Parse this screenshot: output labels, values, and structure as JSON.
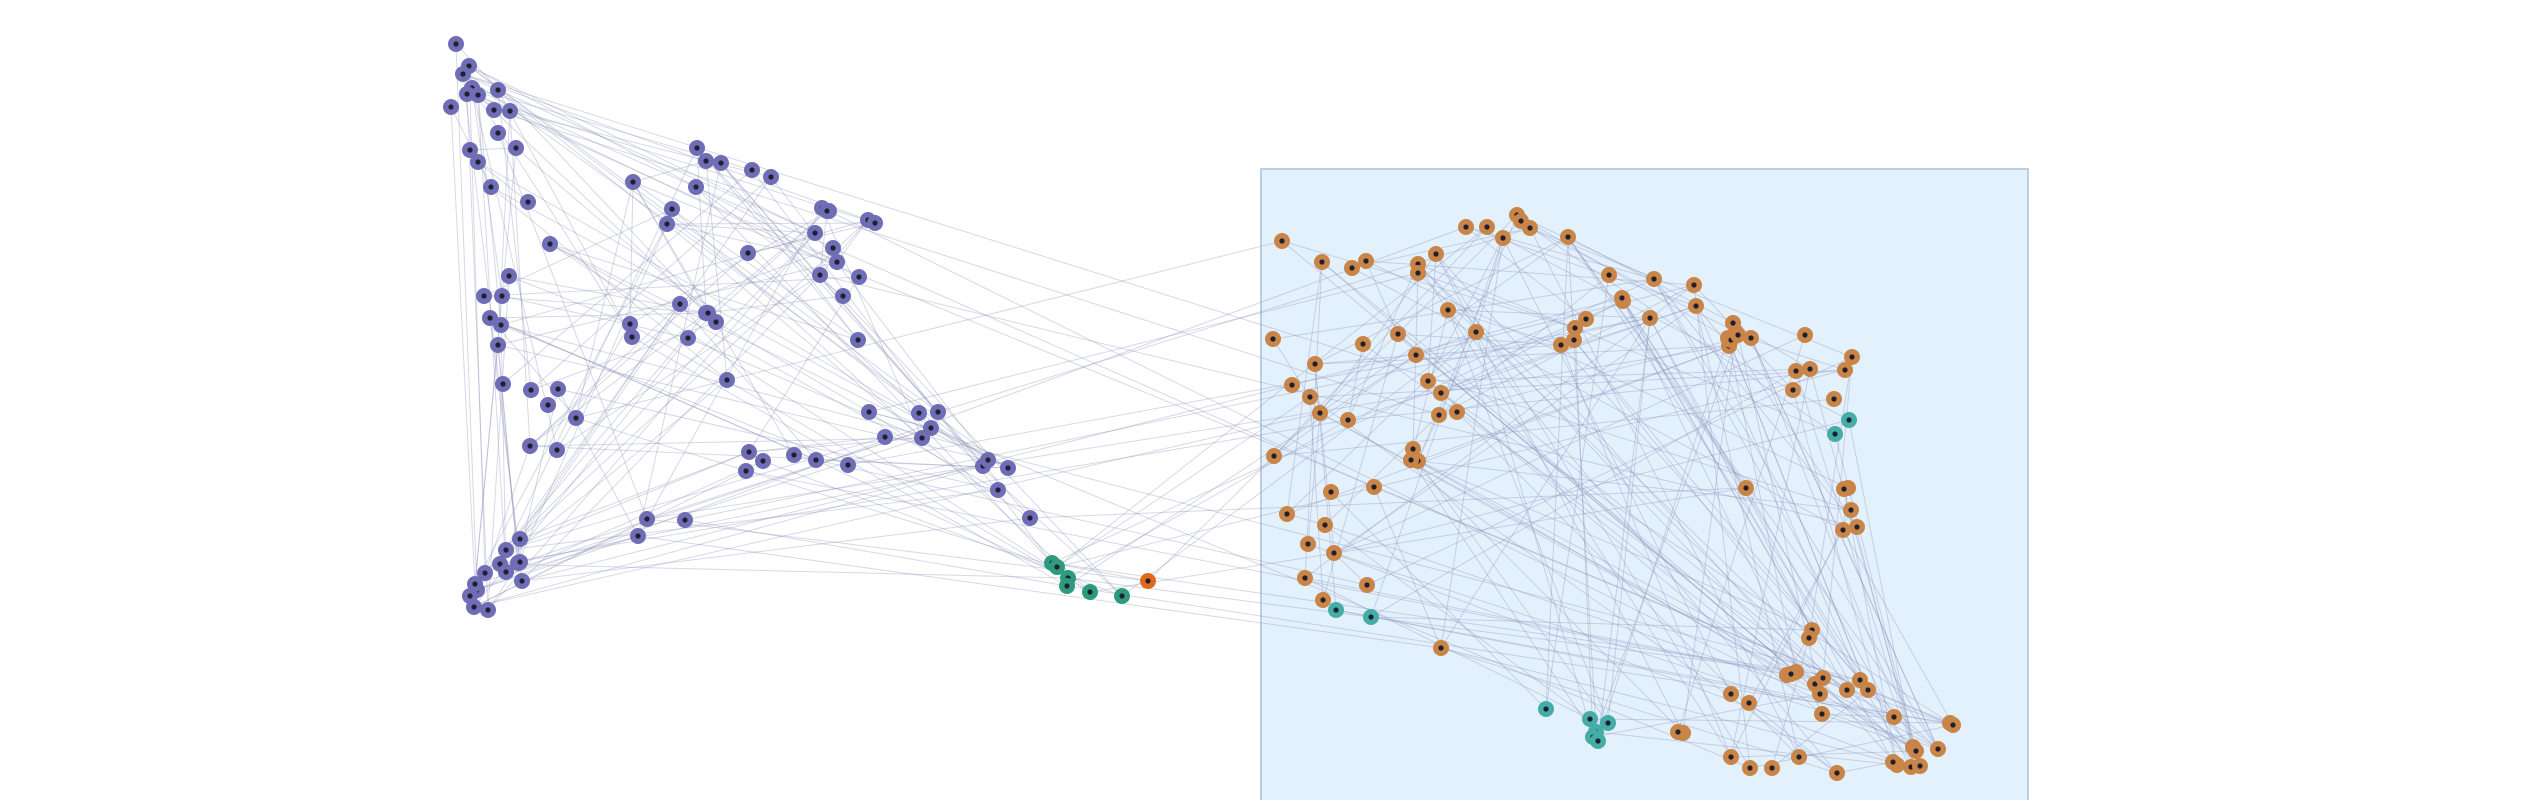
{
  "colors": {
    "background": "#ffffff",
    "highlight_fill": "#e3f1fc",
    "highlight_stroke": "#a9bfdc",
    "edge": "#8a8fb8",
    "purple": "#6f6db5",
    "orange": "#c98448",
    "green": "#2e9a7c",
    "teal": "#44ada7",
    "red": "#e2681e"
  },
  "groups": [
    {
      "id": "purple",
      "color": "#6f6db5"
    },
    {
      "id": "orange",
      "color": "#c98448"
    },
    {
      "id": "green",
      "color": "#2e9a7c"
    },
    {
      "id": "teal",
      "color": "#44ada7"
    },
    {
      "id": "red",
      "color": "#e2681e"
    }
  ]
}
